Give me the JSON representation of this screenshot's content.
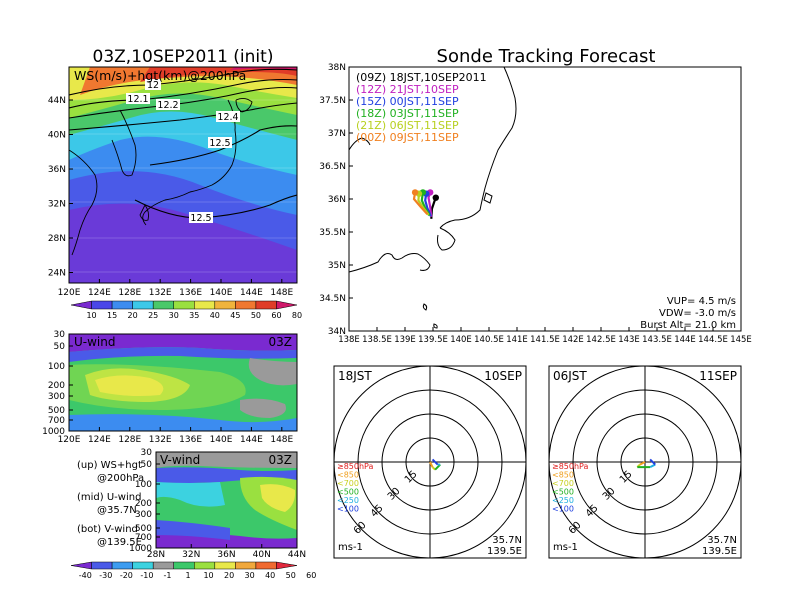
{
  "header": {
    "left_title": "03Z,10SEP2011 (init)",
    "right_title": "Sonde Tracking Forecast"
  },
  "colors": {
    "ws_scale": [
      "#7a2ad0",
      "#4a46e8",
      "#3c8cf0",
      "#3cc8e8",
      "#4ac86a",
      "#9ae040",
      "#e8e84a",
      "#f0b43c",
      "#f07830",
      "#e03c28",
      "#d0186a"
    ],
    "uv_scale": [
      "#7a2ad0",
      "#4a5ae8",
      "#3c9cf0",
      "#3cd2e0",
      "#9a9a9a",
      "#3cc86a",
      "#9ae040",
      "#e8e84a",
      "#f0a83c",
      "#f06a30",
      "#e0283c"
    ],
    "forecast_colors": {
      "18JST": "#000000",
      "21JST": "#c020c0",
      "00JST": "#2040e0",
      "03JST": "#20b020",
      "06JST": "#b8d020",
      "09JST": "#f08020"
    }
  },
  "map_panel": {
    "label": "WS(m/s)+hgt(km)@200hPa",
    "lat_ticks": [
      "44N",
      "40N",
      "36N",
      "32N",
      "28N",
      "24N"
    ],
    "lon_ticks": [
      "120E",
      "124E",
      "128E",
      "132E",
      "136E",
      "140E",
      "144E",
      "148E"
    ],
    "contour_labels": [
      "12",
      "12.1",
      "12.2",
      "12.4",
      "12.5",
      "12.5"
    ]
  },
  "ws_colorbar": {
    "labels": [
      "10",
      "15",
      "20",
      "25",
      "30",
      "35",
      "40",
      "45",
      "50",
      "60",
      "80"
    ]
  },
  "u_panel": {
    "label": "U-wind",
    "time": "03Z",
    "p_ticks": [
      "30",
      "50",
      "100",
      "200",
      "300",
      "500",
      "700",
      "1000"
    ],
    "lon_ticks": [
      "120E",
      "124E",
      "128E",
      "132E",
      "136E",
      "140E",
      "144E",
      "148E"
    ]
  },
  "v_panel": {
    "label": "V-wind",
    "time": "03Z",
    "p_ticks": [
      "30",
      "50",
      "100",
      "200",
      "300",
      "500",
      "700",
      "1000"
    ],
    "lat_ticks": [
      "28N",
      "32N",
      "36N",
      "40N",
      "44N"
    ]
  },
  "uv_colorbar": {
    "labels": [
      "-40",
      "-30",
      "-20",
      "-10",
      "-1",
      "1",
      "10",
      "20",
      "30",
      "40",
      "50",
      "60"
    ]
  },
  "legend_notes": [
    {
      "line1": "(up) WS+hgt",
      "line2": "@200hPa"
    },
    {
      "line1": "(mid) U-wind",
      "line2": "@35.7N"
    },
    {
      "line1": "(bot) V-wind",
      "line2": "@139.5E"
    }
  ],
  "track_map": {
    "lat_ticks": [
      "38N",
      "37.5N",
      "37N",
      "36.5N",
      "36N",
      "35.5N",
      "35N",
      "34.5N",
      "34N"
    ],
    "lon_ticks": [
      "138E",
      "138.5E",
      "139E",
      "139.5E",
      "140E",
      "140.5E",
      "141E",
      "141.5E",
      "142E",
      "142.5E",
      "143E",
      "143.5E",
      "144E",
      "144.5E",
      "145E"
    ],
    "legend": [
      {
        "label": "(09Z)  18JST,10SEP2011",
        "color": "#000000"
      },
      {
        "label": "(12Z)  21JST,10SEP",
        "color": "#c020c0"
      },
      {
        "label": "(15Z)  00JST,11SEP",
        "color": "#2040e0"
      },
      {
        "label": "(18Z)  03JST,11SEP",
        "color": "#20b020"
      },
      {
        "label": "(21Z)  06JST,11SEP",
        "color": "#b8d020"
      },
      {
        "label": "(00Z)  09JST,11SEP",
        "color": "#f08020"
      }
    ],
    "params": [
      "VUP=  4.5 m/s",
      "VDW= -3.0 m/s",
      "Burst Alt= 21.0 km"
    ]
  },
  "hodo_left": {
    "time": "18JST",
    "date": "10SEP",
    "lat": "35.7N",
    "lon": "139.5E",
    "unit": "ms-1",
    "ring_labels": [
      "15",
      "30",
      "45",
      "60"
    ],
    "levels": [
      {
        "label": "≥850hPa",
        "color": "#e02020"
      },
      {
        "label": "<850",
        "color": "#f0a020"
      },
      {
        "label": "<700",
        "color": "#c8d020"
      },
      {
        "label": "<500",
        "color": "#20b020"
      },
      {
        "label": "<250",
        "color": "#20b0e0"
      },
      {
        "label": "<100",
        "color": "#2040e0"
      }
    ]
  },
  "hodo_right": {
    "time": "06JST",
    "date": "11SEP",
    "lat": "35.7N",
    "lon": "139.5E",
    "unit": "ms-1",
    "ring_labels": [
      "15",
      "30",
      "45",
      "60"
    ],
    "levels": [
      {
        "label": "≥850hPa",
        "color": "#e02020"
      },
      {
        "label": "<850",
        "color": "#f0a020"
      },
      {
        "label": "<700",
        "color": "#c8d020"
      },
      {
        "label": "<500",
        "color": "#20b020"
      },
      {
        "label": "<250",
        "color": "#20b0e0"
      },
      {
        "label": "<100",
        "color": "#2040e0"
      }
    ]
  },
  "chart_data": [
    {
      "type": "heatmap",
      "title": "03Z,10SEP2011 (init)",
      "label": "WS(m/s)+hgt(km)@200hPa",
      "xlim": [
        120,
        150
      ],
      "ylim": [
        22,
        48
      ],
      "colorbar": [
        10,
        15,
        20,
        25,
        30,
        35,
        40,
        45,
        50,
        60,
        80
      ],
      "contour_labels": [
        12,
        12.1,
        12.2,
        12.4,
        12.5,
        12.5
      ]
    },
    {
      "type": "heatmap",
      "label": "U-wind",
      "time": "03Z",
      "xlim": [
        120,
        150
      ],
      "p_levels": [
        30,
        50,
        100,
        200,
        300,
        500,
        700,
        1000
      ]
    },
    {
      "type": "heatmap",
      "label": "V-wind",
      "time": "03Z",
      "xlim": [
        28,
        44
      ],
      "p_levels": [
        30,
        50,
        100,
        200,
        300,
        500,
        700,
        1000
      ]
    },
    {
      "type": "line",
      "title": "Sonde Tracking Forecast",
      "xlim": [
        138,
        145
      ],
      "ylim": [
        34,
        38
      ],
      "series": [
        {
          "name": "(09Z)  18JST,10SEP2011",
          "points": [
            [
              139.47,
              35.7
            ],
            [
              139.48,
              35.85
            ],
            [
              139.52,
              35.95
            ],
            [
              139.55,
              36.02
            ]
          ]
        },
        {
          "name": "(12Z)  21JST,10SEP",
          "points": [
            [
              139.47,
              35.73
            ],
            [
              139.45,
              35.88
            ],
            [
              139.42,
              36.02
            ],
            [
              139.45,
              36.1
            ]
          ]
        },
        {
          "name": "(15Z)  00JST,11SEP",
          "points": [
            [
              139.46,
              35.74
            ],
            [
              139.4,
              35.86
            ],
            [
              139.36,
              35.98
            ],
            [
              139.38,
              36.08
            ]
          ]
        },
        {
          "name": "(18Z)  03JST,11SEP",
          "points": [
            [
              139.44,
              35.75
            ],
            [
              139.36,
              35.86
            ],
            [
              139.3,
              35.98
            ],
            [
              139.32,
              36.1
            ]
          ]
        },
        {
          "name": "(21Z)  06JST,11SEP",
          "points": [
            [
              139.42,
              35.76
            ],
            [
              139.33,
              35.86
            ],
            [
              139.24,
              35.98
            ],
            [
              139.25,
              36.08
            ]
          ]
        },
        {
          "name": "(00Z)  09JST,11SEP",
          "points": [
            [
              139.4,
              35.77
            ],
            [
              139.28,
              35.88
            ],
            [
              139.16,
              36.0
            ],
            [
              139.18,
              36.1
            ]
          ]
        }
      ]
    },
    {
      "type": "scatter",
      "title": "18JST 10SEP hodograph",
      "rings": [
        15,
        30,
        45,
        60
      ],
      "segments": [
        {
          "level": "≥850hPa",
          "u": 0,
          "v": 0
        },
        {
          "level": "<850",
          "u": 1,
          "v": -2
        },
        {
          "level": "<700",
          "u": 2,
          "v": -3
        },
        {
          "level": "<500",
          "u": 4,
          "v": -1
        },
        {
          "level": "<250",
          "u": 3,
          "v": -1
        },
        {
          "level": "<100",
          "u": 1,
          "v": 1
        }
      ]
    },
    {
      "type": "scatter",
      "title": "06JST 11SEP hodograph",
      "rings": [
        15,
        30,
        45,
        60
      ],
      "segments": [
        {
          "level": "≥850hPa",
          "u": 0,
          "v": 0
        },
        {
          "level": "<850",
          "u": -2,
          "v": -1
        },
        {
          "level": "<700",
          "u": -3,
          "v": -2
        },
        {
          "level": "<500",
          "u": 2,
          "v": -2
        },
        {
          "level": "<250",
          "u": 4,
          "v": -1
        },
        {
          "level": "<100",
          "u": 2,
          "v": 1
        }
      ]
    }
  ]
}
